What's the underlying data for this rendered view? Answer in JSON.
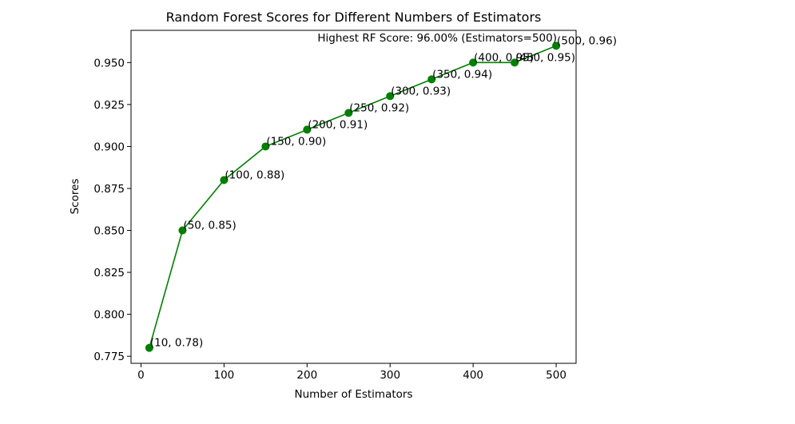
{
  "chart_data": {
    "type": "line",
    "title": "Random Forest Scores for Different Numbers of Estimators",
    "xlabel": "Number of Estimators",
    "ylabel": "Scores",
    "xlim": [
      -12,
      524
    ],
    "ylim": [
      0.7708,
      0.9692
    ],
    "xticks": [
      0,
      100,
      200,
      300,
      400,
      500
    ],
    "yticks": [
      0.775,
      0.8,
      0.825,
      0.85,
      0.875,
      0.9,
      0.925,
      0.95
    ],
    "ytick_labels": [
      "0.775",
      "0.800",
      "0.825",
      "0.850",
      "0.875",
      "0.900",
      "0.925",
      "0.950"
    ],
    "xtick_labels": [
      "0",
      "100",
      "200",
      "300",
      "400",
      "500"
    ],
    "grid": false,
    "line_color": "#008000",
    "marker": "circle",
    "series": [
      {
        "x": [
          10,
          50,
          100,
          150,
          200,
          250,
          300,
          350,
          400,
          450,
          500
        ],
        "y": [
          0.78,
          0.85,
          0.88,
          0.9,
          0.91,
          0.92,
          0.93,
          0.94,
          0.95,
          0.95,
          0.96
        ]
      }
    ],
    "point_labels": [
      "(10, 0.78)",
      "(50, 0.85)",
      "(100, 0.88)",
      "(150, 0.90)",
      "(200, 0.91)",
      "(250, 0.92)",
      "(300, 0.93)",
      "(350, 0.94)",
      "(400, 0.95)",
      "(450, 0.95)",
      "(500, 0.96)"
    ],
    "annotation": {
      "text": "Highest RF Score: 96.00% (Estimators=500)",
      "anchor": "x=500, y=0.96"
    }
  }
}
